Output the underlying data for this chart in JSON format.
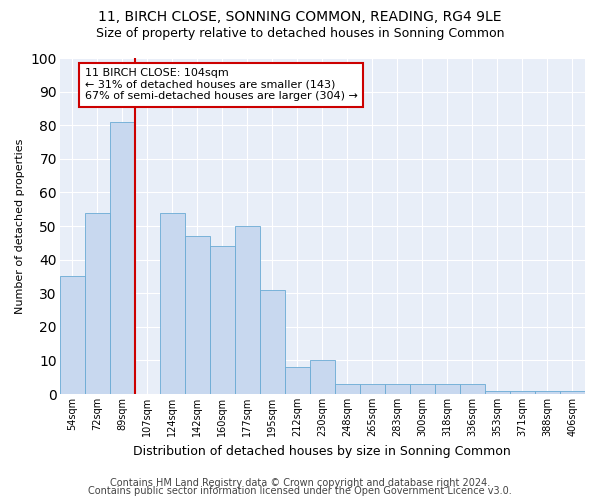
{
  "title": "11, BIRCH CLOSE, SONNING COMMON, READING, RG4 9LE",
  "subtitle": "Size of property relative to detached houses in Sonning Common",
  "xlabel": "Distribution of detached houses by size in Sonning Common",
  "ylabel": "Number of detached properties",
  "categories": [
    "54sqm",
    "72sqm",
    "89sqm",
    "107sqm",
    "124sqm",
    "142sqm",
    "160sqm",
    "177sqm",
    "195sqm",
    "212sqm",
    "230sqm",
    "248sqm",
    "265sqm",
    "283sqm",
    "300sqm",
    "318sqm",
    "336sqm",
    "353sqm",
    "371sqm",
    "388sqm",
    "406sqm"
  ],
  "values": [
    35,
    54,
    81,
    0,
    54,
    47,
    44,
    50,
    31,
    8,
    10,
    3,
    3,
    3,
    3,
    3,
    3,
    1,
    1,
    1,
    1
  ],
  "bar_color": "#c8d8ef",
  "bar_edge_color": "#6aaad4",
  "vline_color": "#cc0000",
  "vline_x_index": 3,
  "annotation_text": "11 BIRCH CLOSE: 104sqm\n← 31% of detached houses are smaller (143)\n67% of semi-detached houses are larger (304) →",
  "annotation_box_facecolor": "#ffffff",
  "annotation_box_edgecolor": "#cc0000",
  "ylim": [
    0,
    100
  ],
  "yticks": [
    0,
    10,
    20,
    30,
    40,
    50,
    60,
    70,
    80,
    90,
    100
  ],
  "bg_color": "#ffffff",
  "plot_bg_color": "#e8eef8",
  "grid_color": "#ffffff",
  "title_fontsize": 10,
  "subtitle_fontsize": 9,
  "tick_fontsize": 7,
  "ylabel_fontsize": 8,
  "xlabel_fontsize": 9,
  "annotation_fontsize": 8,
  "footer1": "Contains HM Land Registry data © Crown copyright and database right 2024.",
  "footer2": "Contains public sector information licensed under the Open Government Licence v3.0.",
  "footer_fontsize": 7
}
